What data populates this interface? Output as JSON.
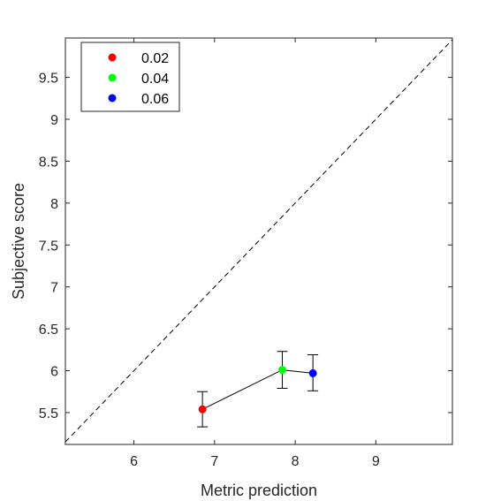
{
  "chart_data": {
    "type": "scatter",
    "title": "",
    "xlabel": "Metric prediction",
    "ylabel": "Subjective score",
    "xlim": [
      5.15,
      9.95
    ],
    "ylim": [
      5.12,
      9.97
    ],
    "xticks": [
      6,
      7,
      8,
      9
    ],
    "yticks": [
      5.5,
      6,
      6.5,
      7,
      7.5,
      8,
      8.5,
      9,
      9.5
    ],
    "grid": false,
    "legend_position": "top-left",
    "reference_line": {
      "style": "dashed",
      "color": "#000000",
      "from": [
        5.15,
        5.15
      ],
      "to": [
        9.95,
        9.95
      ]
    },
    "connecting_line": {
      "color": "#000000"
    },
    "series": [
      {
        "name": "0.02",
        "color": "#ff0000",
        "x": 6.85,
        "y": 5.54,
        "y_err_low": 5.33,
        "y_err_high": 5.75
      },
      {
        "name": "0.04",
        "color": "#00ff00",
        "x": 7.84,
        "y": 6.01,
        "y_err_low": 5.79,
        "y_err_high": 6.23
      },
      {
        "name": "0.06",
        "color": "#0000ff",
        "x": 8.22,
        "y": 5.97,
        "y_err_low": 5.76,
        "y_err_high": 6.19
      }
    ]
  }
}
